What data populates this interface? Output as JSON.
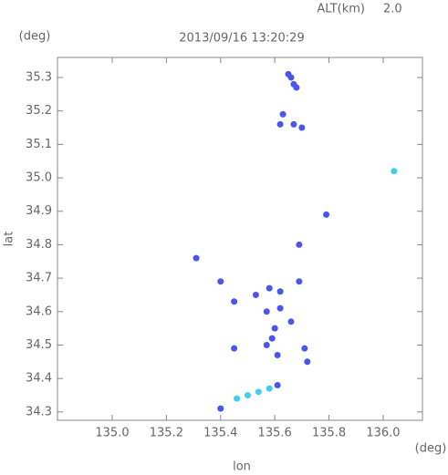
{
  "chart_data": {
    "type": "scatter",
    "title": "2013/09/16 13:20:29",
    "altitude_label": "ALT(km)",
    "altitude_value": "2.0",
    "y_unit": "(deg)",
    "x_unit": "(deg)",
    "xlabel": "lon",
    "ylabel": "lat",
    "xlim": [
      134.798,
      136.145
    ],
    "ylim": [
      34.275,
      35.36
    ],
    "xticks": [
      {
        "value": 135.0,
        "label": "135.0"
      },
      {
        "value": 135.2,
        "label": "135.2"
      },
      {
        "value": 135.4,
        "label": "135.4"
      },
      {
        "value": 135.6,
        "label": "135.6"
      },
      {
        "value": 135.8,
        "label": "135.8"
      },
      {
        "value": 136.0,
        "label": "136.0"
      }
    ],
    "yticks": [
      {
        "value": 34.3,
        "label": "34.3"
      },
      {
        "value": 34.4,
        "label": "34.4"
      },
      {
        "value": 34.5,
        "label": "34.5"
      },
      {
        "value": 34.6,
        "label": "34.6"
      },
      {
        "value": 34.7,
        "label": "34.7"
      },
      {
        "value": 34.8,
        "label": "34.8"
      },
      {
        "value": 34.9,
        "label": "34.9"
      },
      {
        "value": 35.0,
        "label": "35.0"
      },
      {
        "value": 35.1,
        "label": "35.1"
      },
      {
        "value": 35.2,
        "label": "35.2"
      },
      {
        "value": 35.3,
        "label": "35.3"
      }
    ],
    "x": [
      135.65,
      135.66,
      135.67,
      135.68,
      135.63,
      135.62,
      135.67,
      135.7,
      136.04,
      135.79,
      135.31,
      135.69,
      135.4,
      135.69,
      135.45,
      135.53,
      135.58,
      135.62,
      135.62,
      135.57,
      135.6,
      135.66,
      135.59,
      135.61,
      135.57,
      135.71,
      135.45,
      135.72,
      135.61,
      135.4,
      135.46,
      135.5,
      135.54,
      135.58
    ],
    "y": [
      35.31,
      35.3,
      35.28,
      35.27,
      35.19,
      35.16,
      35.16,
      35.15,
      35.02,
      34.89,
      34.76,
      34.8,
      34.69,
      34.69,
      34.63,
      34.65,
      34.67,
      34.66,
      34.61,
      34.6,
      34.55,
      34.57,
      34.52,
      34.47,
      34.5,
      34.49,
      34.49,
      34.45,
      34.38,
      34.31,
      34.34,
      34.35,
      34.36,
      34.37
    ],
    "colors": [
      "#4a55ee",
      "#4a55ee",
      "#4a55ee",
      "#4a55ee",
      "#4a55ee",
      "#4a55ee",
      "#4a55ee",
      "#4a55ee",
      "#44ccee",
      "#4a55ee",
      "#4a55ee",
      "#4a55ee",
      "#4a55ee",
      "#4a55ee",
      "#4a55ee",
      "#4a55ee",
      "#4a55ee",
      "#4a55ee",
      "#4a55ee",
      "#4a55ee",
      "#4a55ee",
      "#4a55ee",
      "#4a55ee",
      "#4a55ee",
      "#4a55ee",
      "#4a55ee",
      "#4a55ee",
      "#4a55ee",
      "#4a55ee",
      "#4a55ee",
      "#44ccee",
      "#44ccee",
      "#44ccee",
      "#44ccee"
    ]
  }
}
